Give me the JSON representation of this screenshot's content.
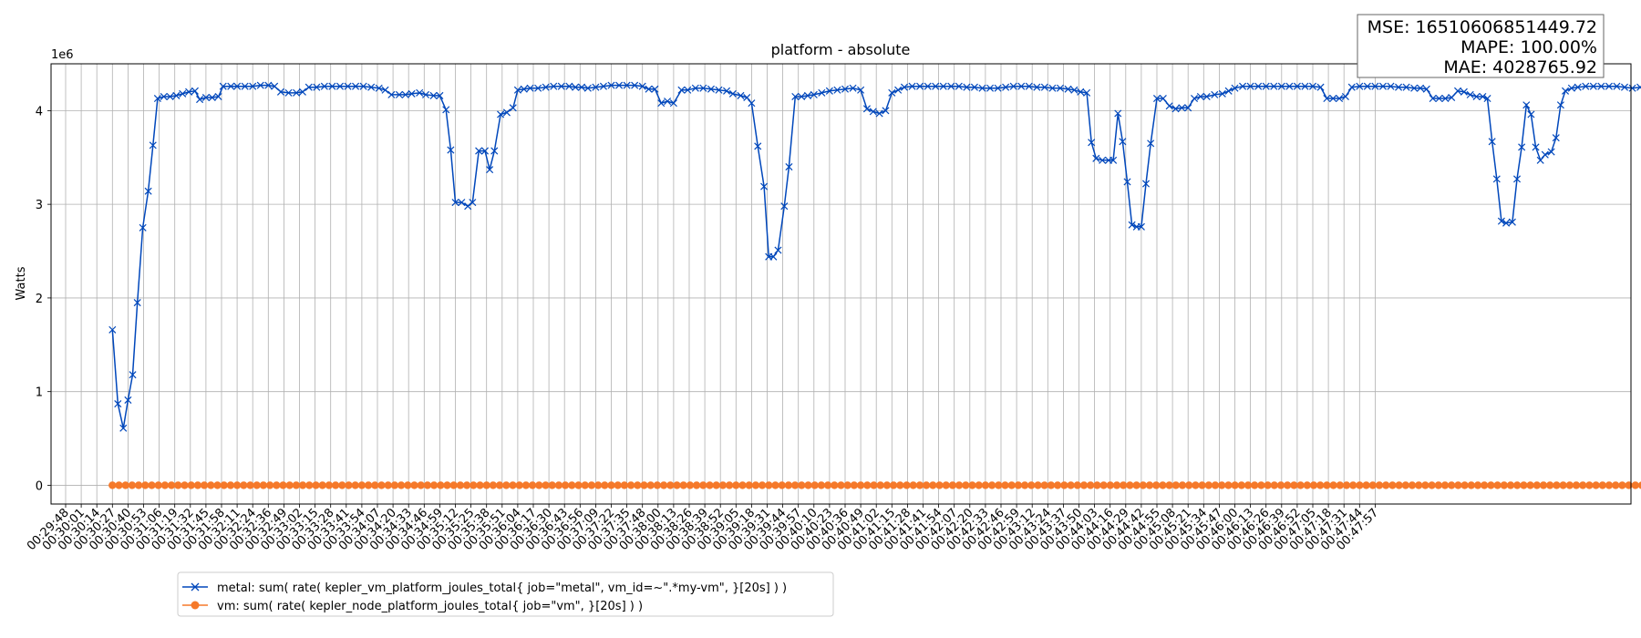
{
  "chart_data": {
    "type": "line",
    "title": "platform - absolute",
    "xlabel": "",
    "ylabel": "Watts",
    "y_multiplier": "1e6",
    "ylim": [
      -0.2,
      4.5
    ],
    "yticks": [
      0,
      1,
      2,
      3,
      4
    ],
    "xticks": [
      "00:29:48",
      "00:30:01",
      "00:30:14",
      "00:30:27",
      "00:30:40",
      "00:30:53",
      "00:31:06",
      "00:31:19",
      "00:31:32",
      "00:31:45",
      "00:31:58",
      "00:32:11",
      "00:32:24",
      "00:32:36",
      "00:32:49",
      "00:33:02",
      "00:33:15",
      "00:33:28",
      "00:33:41",
      "00:33:54",
      "00:34:07",
      "00:34:20",
      "00:34:33",
      "00:34:46",
      "00:34:59",
      "00:35:12",
      "00:35:25",
      "00:35:38",
      "00:35:51",
      "00:36:04",
      "00:36:17",
      "00:36:30",
      "00:36:43",
      "00:36:56",
      "00:37:09",
      "00:37:22",
      "00:37:35",
      "00:37:48",
      "00:38:00",
      "00:38:13",
      "00:38:26",
      "00:38:39",
      "00:38:52",
      "00:39:05",
      "00:39:18",
      "00:39:31",
      "00:39:44",
      "00:39:57",
      "00:40:10",
      "00:40:23",
      "00:40:36",
      "00:40:49",
      "00:41:02",
      "00:41:15",
      "00:41:28",
      "00:41:41",
      "00:41:54",
      "00:42:07",
      "00:42:20",
      "00:42:33",
      "00:42:46",
      "00:42:59",
      "00:43:12",
      "00:43:24",
      "00:43:37",
      "00:43:50",
      "00:44:03",
      "00:44:16",
      "00:44:29",
      "00:44:42",
      "00:44:55",
      "00:45:08",
      "00:45:21",
      "00:45:34",
      "00:45:47",
      "00:46:00",
      "00:46:13",
      "00:46:26",
      "00:46:39",
      "00:46:52",
      "00:47:05",
      "00:47:18",
      "00:47:31",
      "00:47:44",
      "00:47:57"
    ],
    "grid": true,
    "legend_position": "bottom-left",
    "series": [
      {
        "name": "metal: sum( rate( kepler_vm_platform_joules_total{ job=\"metal\", vm_id=~\".*my-vm\", }[20s] ) )",
        "color": "#0047bb",
        "marker": "x",
        "points": [
          [
            3,
            1.66
          ],
          [
            3.35,
            0.87
          ],
          [
            3.7,
            0.61
          ],
          [
            4.0,
            0.91
          ],
          [
            4.3,
            1.18
          ],
          [
            4.6,
            1.95
          ],
          [
            4.95,
            2.75
          ],
          [
            5.3,
            3.14
          ],
          [
            5.6,
            3.63
          ],
          [
            5.9,
            4.13
          ],
          [
            6.3,
            4.15
          ],
          [
            6.7,
            4.15
          ],
          [
            7.1,
            4.16
          ],
          [
            7.5,
            4.18
          ],
          [
            7.9,
            4.2
          ],
          [
            8.3,
            4.21
          ],
          [
            8.6,
            4.12
          ],
          [
            9.0,
            4.14
          ],
          [
            9.4,
            4.14
          ],
          [
            9.8,
            4.15
          ],
          [
            10.1,
            4.26
          ],
          [
            10.6,
            4.26
          ],
          [
            11.0,
            4.26
          ],
          [
            11.5,
            4.26
          ],
          [
            12.0,
            4.26
          ],
          [
            12.5,
            4.27
          ],
          [
            13.0,
            4.27
          ],
          [
            13.4,
            4.26
          ],
          [
            13.8,
            4.2
          ],
          [
            14.3,
            4.19
          ],
          [
            14.8,
            4.19
          ],
          [
            15.2,
            4.2
          ],
          [
            15.6,
            4.25
          ],
          [
            16.1,
            4.25
          ],
          [
            16.6,
            4.26
          ],
          [
            17.1,
            4.26
          ],
          [
            17.6,
            4.26
          ],
          [
            18.1,
            4.26
          ],
          [
            18.6,
            4.26
          ],
          [
            19.1,
            4.26
          ],
          [
            19.6,
            4.25
          ],
          [
            20.1,
            4.24
          ],
          [
            20.5,
            4.22
          ],
          [
            20.9,
            4.17
          ],
          [
            21.4,
            4.17
          ],
          [
            21.8,
            4.17
          ],
          [
            22.2,
            4.18
          ],
          [
            22.7,
            4.19
          ],
          [
            23.1,
            4.17
          ],
          [
            23.6,
            4.16
          ],
          [
            24.0,
            4.16
          ],
          [
            24.4,
            4.01
          ],
          [
            24.7,
            3.58
          ],
          [
            25.0,
            3.02
          ],
          [
            25.4,
            3.02
          ],
          [
            25.8,
            2.98
          ],
          [
            26.1,
            3.02
          ],
          [
            26.5,
            3.57
          ],
          [
            26.9,
            3.57
          ],
          [
            27.2,
            3.37
          ],
          [
            27.5,
            3.57
          ],
          [
            27.9,
            3.96
          ],
          [
            28.3,
            3.98
          ],
          [
            28.7,
            4.03
          ],
          [
            29.0,
            4.22
          ],
          [
            29.4,
            4.23
          ],
          [
            29.8,
            4.24
          ],
          [
            30.3,
            4.24
          ],
          [
            30.8,
            4.25
          ],
          [
            31.3,
            4.26
          ],
          [
            31.8,
            4.26
          ],
          [
            32.3,
            4.26
          ],
          [
            32.7,
            4.25
          ],
          [
            33.1,
            4.25
          ],
          [
            33.5,
            4.24
          ],
          [
            34.0,
            4.25
          ],
          [
            34.5,
            4.26
          ],
          [
            35.0,
            4.27
          ],
          [
            35.5,
            4.27
          ],
          [
            36.0,
            4.27
          ],
          [
            36.5,
            4.27
          ],
          [
            37.0,
            4.26
          ],
          [
            37.4,
            4.23
          ],
          [
            37.8,
            4.23
          ],
          [
            38.2,
            4.08
          ],
          [
            38.6,
            4.1
          ],
          [
            39.0,
            4.08
          ],
          [
            39.5,
            4.22
          ],
          [
            39.9,
            4.22
          ],
          [
            40.4,
            4.24
          ],
          [
            40.9,
            4.24
          ],
          [
            41.4,
            4.23
          ],
          [
            41.9,
            4.22
          ],
          [
            42.4,
            4.21
          ],
          [
            42.8,
            4.18
          ],
          [
            43.3,
            4.16
          ],
          [
            43.7,
            4.14
          ],
          [
            44.0,
            4.08
          ],
          [
            44.4,
            3.62
          ],
          [
            44.8,
            3.19
          ],
          [
            45.1,
            2.44
          ],
          [
            45.4,
            2.44
          ],
          [
            45.7,
            2.51
          ],
          [
            46.1,
            2.98
          ],
          [
            46.4,
            3.4
          ],
          [
            46.8,
            4.15
          ],
          [
            47.2,
            4.15
          ],
          [
            47.6,
            4.16
          ],
          [
            48.0,
            4.17
          ],
          [
            48.5,
            4.19
          ],
          [
            49.0,
            4.21
          ],
          [
            49.5,
            4.22
          ],
          [
            50.0,
            4.23
          ],
          [
            50.5,
            4.24
          ],
          [
            51.0,
            4.22
          ],
          [
            51.4,
            4.02
          ],
          [
            51.8,
            3.99
          ],
          [
            52.2,
            3.97
          ],
          [
            52.6,
            4.0
          ],
          [
            53.0,
            4.19
          ],
          [
            53.4,
            4.22
          ],
          [
            53.8,
            4.25
          ],
          [
            54.3,
            4.26
          ],
          [
            54.8,
            4.26
          ],
          [
            55.3,
            4.26
          ],
          [
            55.8,
            4.26
          ],
          [
            56.3,
            4.26
          ],
          [
            56.8,
            4.26
          ],
          [
            57.3,
            4.26
          ],
          [
            57.8,
            4.25
          ],
          [
            58.3,
            4.25
          ],
          [
            58.8,
            4.24
          ],
          [
            59.3,
            4.24
          ],
          [
            59.8,
            4.24
          ],
          [
            60.3,
            4.25
          ],
          [
            60.8,
            4.26
          ],
          [
            61.3,
            4.26
          ],
          [
            61.8,
            4.26
          ],
          [
            62.3,
            4.25
          ],
          [
            62.8,
            4.25
          ],
          [
            63.3,
            4.24
          ],
          [
            63.8,
            4.24
          ],
          [
            64.3,
            4.23
          ],
          [
            64.7,
            4.22
          ],
          [
            65.1,
            4.2
          ],
          [
            65.5,
            4.19
          ],
          [
            65.8,
            3.66
          ],
          [
            66.1,
            3.49
          ],
          [
            66.5,
            3.47
          ],
          [
            66.9,
            3.47
          ],
          [
            67.2,
            3.47
          ],
          [
            67.5,
            3.97
          ],
          [
            67.8,
            3.67
          ],
          [
            68.1,
            3.24
          ],
          [
            68.4,
            2.78
          ],
          [
            68.7,
            2.76
          ],
          [
            69.0,
            2.76
          ],
          [
            69.3,
            3.22
          ],
          [
            69.6,
            3.65
          ],
          [
            70.0,
            4.13
          ],
          [
            70.4,
            4.13
          ],
          [
            70.8,
            4.05
          ],
          [
            71.2,
            4.02
          ],
          [
            71.6,
            4.03
          ],
          [
            72.0,
            4.03
          ],
          [
            72.4,
            4.13
          ],
          [
            72.8,
            4.15
          ],
          [
            73.2,
            4.15
          ],
          [
            73.7,
            4.17
          ],
          [
            74.2,
            4.18
          ],
          [
            74.6,
            4.21
          ],
          [
            75.0,
            4.24
          ],
          [
            75.5,
            4.26
          ],
          [
            76.0,
            4.26
          ],
          [
            76.5,
            4.26
          ],
          [
            77.0,
            4.26
          ],
          [
            77.5,
            4.26
          ],
          [
            78.0,
            4.26
          ],
          [
            78.5,
            4.26
          ],
          [
            79.0,
            4.26
          ],
          [
            79.5,
            4.26
          ],
          [
            80.0,
            4.26
          ],
          [
            80.5,
            4.25
          ],
          [
            80.9,
            4.13
          ],
          [
            81.3,
            4.13
          ],
          [
            81.7,
            4.13
          ],
          [
            82.1,
            4.15
          ],
          [
            82.5,
            4.25
          ],
          [
            83.0,
            4.26
          ],
          [
            83.5,
            4.26
          ],
          [
            84.0,
            4.26
          ],
          [
            84.5,
            4.26
          ],
          [
            85.0,
            4.26
          ],
          [
            85.5,
            4.25
          ],
          [
            86.0,
            4.25
          ],
          [
            86.5,
            4.24
          ],
          [
            86.9,
            4.24
          ],
          [
            87.3,
            4.23
          ],
          [
            87.7,
            4.13
          ],
          [
            88.1,
            4.13
          ],
          [
            88.5,
            4.13
          ],
          [
            88.9,
            4.14
          ],
          [
            89.3,
            4.21
          ],
          [
            89.7,
            4.2
          ],
          [
            90.1,
            4.17
          ],
          [
            90.5,
            4.15
          ],
          [
            90.9,
            4.15
          ],
          [
            91.2,
            4.13
          ],
          [
            91.5,
            3.67
          ],
          [
            91.8,
            3.27
          ],
          [
            92.1,
            2.82
          ],
          [
            92.4,
            2.8
          ],
          [
            92.8,
            2.81
          ],
          [
            93.1,
            3.27
          ],
          [
            93.4,
            3.61
          ],
          [
            93.7,
            4.06
          ],
          [
            94.0,
            3.96
          ],
          [
            94.3,
            3.61
          ],
          [
            94.6,
            3.47
          ],
          [
            94.9,
            3.53
          ],
          [
            95.3,
            3.56
          ],
          [
            95.6,
            3.71
          ],
          [
            95.9,
            4.06
          ],
          [
            96.2,
            4.21
          ],
          [
            96.6,
            4.24
          ],
          [
            97.0,
            4.25
          ],
          [
            97.5,
            4.26
          ],
          [
            98.0,
            4.26
          ],
          [
            98.5,
            4.26
          ],
          [
            99.0,
            4.26
          ],
          [
            99.5,
            4.26
          ],
          [
            100.0,
            4.25
          ],
          [
            100.5,
            4.24
          ],
          [
            101.0,
            4.25
          ],
          [
            101.5,
            4.26
          ],
          [
            102.0,
            4.26
          ],
          [
            102.5,
            4.26
          ],
          [
            103.0,
            4.26
          ],
          [
            103.5,
            4.27
          ],
          [
            104.0,
            4.27
          ],
          [
            104.5,
            4.27
          ],
          [
            105.0,
            4.27
          ],
          [
            105.5,
            4.26
          ],
          [
            106.0,
            4.26
          ],
          [
            106.5,
            4.25
          ],
          [
            107.0,
            4.21
          ],
          [
            107.4,
            4.01
          ],
          [
            107.8,
            4.01
          ],
          [
            108.2,
            4.03
          ],
          [
            108.6,
            4.06
          ],
          [
            109.0,
            4.26
          ],
          [
            109.5,
            4.25
          ],
          [
            110.0,
            4.24
          ],
          [
            110.5,
            4.23
          ],
          [
            111.0,
            4.2
          ],
          [
            111.5,
            4.17
          ],
          [
            112.0,
            4.15
          ],
          [
            112.5,
            4.14
          ],
          [
            112.9,
            4.03
          ]
        ]
      },
      {
        "name": "vm: sum( rate( kepler_node_platform_joules_total{ job=\"vm\", }[20s] ) )",
        "color": "#f5792a",
        "marker": "o",
        "x_range": [
          3,
          112.9
        ],
        "count": 262,
        "value": 0
      }
    ]
  },
  "stats": {
    "mse": "MSE: 16510606851449.72",
    "mape": "MAPE: 100.00%",
    "mae": "MAE: 4028765.92"
  }
}
